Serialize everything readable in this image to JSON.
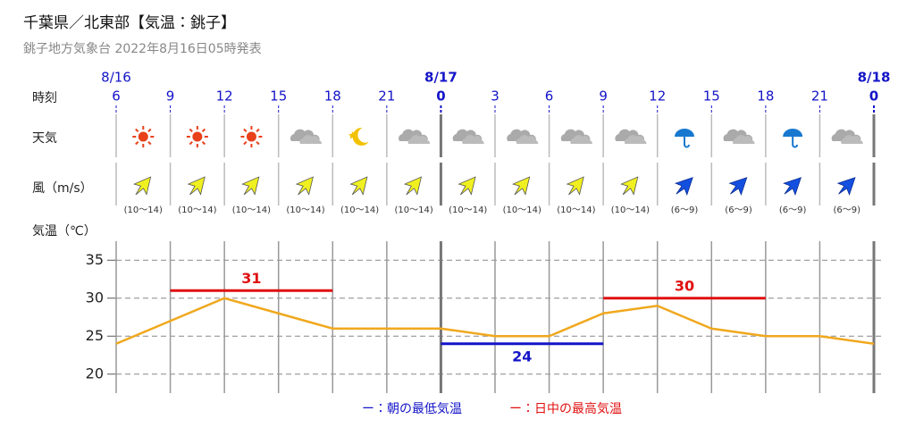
{
  "chart_data": {
    "type": "line",
    "title": "千葉県／北東部【気温：銚子】",
    "subtitle": "銚子地方気象台 2022年8月16日05時発表",
    "row_labels": {
      "time": "時刻",
      "weather": "天気",
      "wind": "風（m/s）",
      "temperature": "気温（℃）"
    },
    "dates": [
      "8/16",
      null,
      null,
      null,
      null,
      null,
      "8/17",
      null,
      null,
      null,
      null,
      null,
      null,
      null,
      "8/18"
    ],
    "categories": [
      "6",
      "9",
      "12",
      "15",
      "18",
      "21",
      "0",
      "3",
      "6",
      "9",
      "12",
      "15",
      "18",
      "21",
      "0"
    ],
    "wind_labels": [
      "(10～14)",
      "(10～14)",
      "(10～14)",
      "(10～14)",
      "(10～14)",
      "(10～14)",
      "(10～14)",
      "(10～14)",
      "(10～14)",
      "(10～14)",
      "(6～9)",
      "(6～9)",
      "(6～9)",
      "(6～9)"
    ],
    "series": [
      {
        "color": "#f0a81e",
        "values": [
          24,
          27,
          30,
          28,
          26,
          26,
          26,
          25,
          25,
          28,
          29,
          26,
          25,
          25,
          24
        ]
      },
      {
        "name": "朝の最低気温",
        "color": "#1414c8",
        "values": [
          null,
          null,
          null,
          null,
          null,
          null,
          24,
          24,
          24,
          24,
          null,
          null,
          null,
          null,
          null
        ]
      },
      {
        "name": "日中の最高気温",
        "color": "#e01010",
        "values": [
          null,
          31,
          31,
          31,
          31,
          null,
          null,
          null,
          null,
          30,
          30,
          30,
          30,
          null,
          null
        ]
      }
    ],
    "legend_marker": "ー：",
    "ylim": [
      17.5,
      37.5
    ],
    "yticks": [
      20,
      25,
      30,
      35
    ],
    "grid": true
  }
}
